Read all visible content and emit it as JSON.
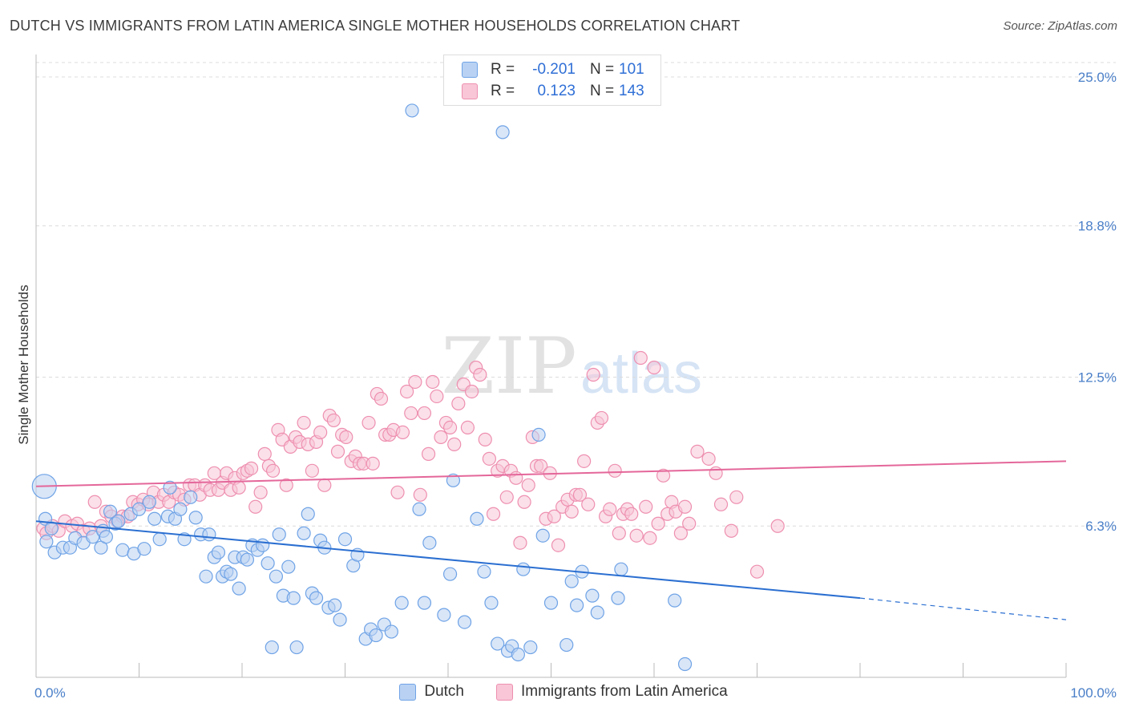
{
  "title": "DUTCH VS IMMIGRANTS FROM LATIN AMERICA SINGLE MOTHER HOUSEHOLDS CORRELATION CHART",
  "source": "Source: ZipAtlas.com",
  "watermark": {
    "zip": "ZIP",
    "atlas": "atlas"
  },
  "colors": {
    "dutch": "#6fa3e6",
    "dutch_fill": "#b9d2f3",
    "latin": "#ee8fb0",
    "latin_fill": "#f8c6d7",
    "dutch_line": "#2b6fd1",
    "latin_line": "#e4679a",
    "tick": "#4a7fc8"
  },
  "legend": {
    "rows": [
      {
        "r_label": "R =",
        "r_value": "-0.201",
        "n_label": "N =",
        "n_value": "101"
      },
      {
        "r_label": "R =",
        "r_value": "0.123",
        "n_label": "N =",
        "n_value": "143"
      }
    ]
  },
  "bottom_legend": [
    "Dutch",
    "Immigrants from Latin America"
  ],
  "chart_data": {
    "type": "scatter",
    "title": "DUTCH VS IMMIGRANTS FROM LATIN AMERICA SINGLE MOTHER HOUSEHOLDS CORRELATION CHART",
    "xlabel": "",
    "ylabel": "Single Mother Households",
    "xlim": [
      0,
      100
    ],
    "ylim": [
      0,
      25.6
    ],
    "x_tick_labels": [
      "0.0%",
      "100.0%"
    ],
    "y_ticks": [
      6.3,
      12.5,
      18.8,
      25.0
    ],
    "y_tick_labels": [
      "6.3%",
      "12.5%",
      "18.8%",
      "25.0%"
    ],
    "grid": "horizontal dashed",
    "series": [
      {
        "name": "Dutch",
        "trend": {
          "x0": 0,
          "y0": 6.5,
          "x1": 80,
          "y1": 3.3,
          "dash_to_x": 100,
          "dash_y": 2.4
        },
        "points": [
          [
            0.8,
            7.95
          ],
          [
            0.9,
            6.6
          ],
          [
            1.0,
            5.65
          ],
          [
            1.5,
            6.2
          ],
          [
            1.8,
            5.2
          ],
          [
            2.6,
            5.4
          ],
          [
            3.3,
            5.4
          ],
          [
            3.8,
            5.8
          ],
          [
            4.6,
            5.6
          ],
          [
            5.5,
            5.85
          ],
          [
            6.3,
            5.4
          ],
          [
            6.5,
            6.1
          ],
          [
            6.8,
            5.85
          ],
          [
            7.2,
            6.9
          ],
          [
            7.7,
            6.4
          ],
          [
            8.0,
            6.5
          ],
          [
            8.4,
            5.3
          ],
          [
            9.2,
            6.8
          ],
          [
            9.5,
            5.15
          ],
          [
            10.0,
            7.0
          ],
          [
            10.5,
            5.35
          ],
          [
            11.0,
            7.3
          ],
          [
            11.5,
            6.6
          ],
          [
            12.0,
            5.75
          ],
          [
            12.8,
            6.7
          ],
          [
            13.0,
            7.9
          ],
          [
            13.5,
            6.6
          ],
          [
            14.0,
            7.0
          ],
          [
            14.4,
            5.75
          ],
          [
            15.0,
            7.5
          ],
          [
            15.5,
            6.65
          ],
          [
            16.0,
            5.95
          ],
          [
            16.5,
            4.2
          ],
          [
            16.8,
            5.95
          ],
          [
            17.3,
            5.0
          ],
          [
            17.7,
            5.2
          ],
          [
            18.1,
            4.2
          ],
          [
            18.5,
            4.4
          ],
          [
            18.9,
            4.3
          ],
          [
            19.3,
            5.0
          ],
          [
            19.7,
            3.7
          ],
          [
            20.1,
            5.0
          ],
          [
            20.5,
            4.9
          ],
          [
            21.0,
            5.5
          ],
          [
            21.5,
            5.3
          ],
          [
            22.0,
            5.5
          ],
          [
            22.5,
            4.75
          ],
          [
            22.9,
            1.25
          ],
          [
            23.3,
            4.2
          ],
          [
            23.6,
            5.95
          ],
          [
            24.0,
            3.4
          ],
          [
            24.5,
            4.6
          ],
          [
            25.0,
            3.3
          ],
          [
            25.3,
            1.25
          ],
          [
            26.0,
            6.0
          ],
          [
            26.4,
            6.8
          ],
          [
            26.8,
            3.5
          ],
          [
            27.2,
            3.3
          ],
          [
            27.6,
            5.7
          ],
          [
            28.0,
            5.4
          ],
          [
            28.4,
            2.9
          ],
          [
            29.0,
            3.0
          ],
          [
            29.5,
            2.4
          ],
          [
            30.0,
            5.75
          ],
          [
            30.8,
            4.65
          ],
          [
            31.2,
            5.1
          ],
          [
            32.0,
            1.6
          ],
          [
            32.5,
            2.0
          ],
          [
            33.0,
            1.75
          ],
          [
            33.8,
            2.2
          ],
          [
            34.5,
            1.9
          ],
          [
            35.5,
            3.1
          ],
          [
            36.5,
            23.6
          ],
          [
            37.2,
            7.0
          ],
          [
            37.7,
            3.1
          ],
          [
            38.2,
            5.6
          ],
          [
            39.6,
            2.6
          ],
          [
            40.2,
            4.3
          ],
          [
            40.5,
            8.2
          ],
          [
            41.6,
            2.3
          ],
          [
            42.8,
            6.6
          ],
          [
            43.5,
            4.4
          ],
          [
            44.2,
            3.1
          ],
          [
            44.8,
            1.4
          ],
          [
            45.3,
            22.7
          ],
          [
            45.8,
            1.1
          ],
          [
            46.2,
            1.3
          ],
          [
            46.8,
            0.95
          ],
          [
            47.3,
            4.5
          ],
          [
            48.0,
            1.25
          ],
          [
            48.8,
            10.1
          ],
          [
            49.2,
            5.9
          ],
          [
            50.0,
            3.1
          ],
          [
            51.5,
            1.35
          ],
          [
            52.0,
            4.0
          ],
          [
            52.5,
            3.0
          ],
          [
            53.0,
            4.4
          ],
          [
            54.0,
            3.4
          ],
          [
            54.5,
            2.7
          ],
          [
            56.5,
            3.3
          ],
          [
            56.8,
            4.5
          ],
          [
            62.0,
            3.2
          ],
          [
            63.0,
            0.55
          ]
        ],
        "large_points": [
          [
            0.8,
            7.95
          ],
          [
            1.0,
            6.6
          ]
        ]
      },
      {
        "name": "Immigrants from Latin America",
        "trend": {
          "x0": 0,
          "y0": 7.95,
          "x1": 100,
          "y1": 9.0
        },
        "points": [
          [
            0.7,
            6.2
          ],
          [
            1.0,
            6.0
          ],
          [
            1.6,
            6.3
          ],
          [
            2.2,
            6.1
          ],
          [
            2.8,
            6.5
          ],
          [
            3.5,
            6.3
          ],
          [
            4.0,
            6.4
          ],
          [
            4.6,
            6.1
          ],
          [
            5.2,
            6.2
          ],
          [
            5.7,
            7.3
          ],
          [
            6.3,
            6.3
          ],
          [
            6.8,
            6.9
          ],
          [
            7.3,
            6.7
          ],
          [
            7.9,
            6.5
          ],
          [
            8.4,
            6.7
          ],
          [
            8.9,
            6.7
          ],
          [
            9.4,
            7.3
          ],
          [
            9.9,
            7.2
          ],
          [
            10.4,
            7.4
          ],
          [
            10.9,
            7.2
          ],
          [
            11.4,
            7.7
          ],
          [
            11.9,
            7.3
          ],
          [
            12.4,
            7.6
          ],
          [
            12.9,
            7.3
          ],
          [
            13.4,
            7.7
          ],
          [
            13.9,
            7.6
          ],
          [
            14.4,
            7.4
          ],
          [
            14.9,
            8.0
          ],
          [
            15.4,
            8.0
          ],
          [
            15.9,
            7.6
          ],
          [
            16.4,
            8.0
          ],
          [
            16.9,
            7.8
          ],
          [
            17.3,
            8.5
          ],
          [
            17.7,
            7.8
          ],
          [
            18.1,
            8.1
          ],
          [
            18.5,
            8.5
          ],
          [
            18.9,
            7.8
          ],
          [
            19.3,
            8.3
          ],
          [
            19.7,
            7.9
          ],
          [
            20.1,
            8.5
          ],
          [
            20.5,
            8.6
          ],
          [
            20.9,
            8.7
          ],
          [
            21.3,
            7.1
          ],
          [
            21.8,
            7.7
          ],
          [
            22.2,
            9.3
          ],
          [
            22.6,
            8.8
          ],
          [
            23.0,
            8.6
          ],
          [
            23.5,
            10.3
          ],
          [
            23.9,
            9.9
          ],
          [
            24.3,
            8.0
          ],
          [
            24.7,
            9.6
          ],
          [
            25.2,
            10.0
          ],
          [
            25.6,
            9.8
          ],
          [
            26.0,
            10.6
          ],
          [
            26.4,
            9.7
          ],
          [
            26.8,
            8.6
          ],
          [
            27.2,
            9.8
          ],
          [
            27.6,
            10.2
          ],
          [
            28.0,
            8.0
          ],
          [
            28.5,
            10.9
          ],
          [
            28.9,
            10.7
          ],
          [
            29.3,
            9.4
          ],
          [
            29.7,
            10.1
          ],
          [
            30.1,
            10.0
          ],
          [
            30.6,
            9.0
          ],
          [
            31.0,
            9.2
          ],
          [
            31.4,
            8.9
          ],
          [
            31.8,
            8.9
          ],
          [
            32.3,
            10.6
          ],
          [
            32.7,
            8.9
          ],
          [
            33.1,
            11.8
          ],
          [
            33.5,
            11.6
          ],
          [
            33.9,
            10.1
          ],
          [
            34.3,
            10.1
          ],
          [
            34.7,
            10.3
          ],
          [
            35.1,
            7.7
          ],
          [
            35.6,
            10.2
          ],
          [
            36.0,
            11.9
          ],
          [
            36.4,
            11.0
          ],
          [
            36.8,
            12.3
          ],
          [
            37.3,
            7.6
          ],
          [
            37.7,
            11.0
          ],
          [
            38.1,
            9.3
          ],
          [
            38.5,
            12.3
          ],
          [
            38.9,
            11.7
          ],
          [
            39.3,
            10.0
          ],
          [
            39.8,
            10.6
          ],
          [
            40.2,
            10.4
          ],
          [
            40.6,
            9.7
          ],
          [
            41.0,
            11.4
          ],
          [
            41.5,
            12.2
          ],
          [
            41.9,
            10.4
          ],
          [
            42.3,
            11.9
          ],
          [
            42.7,
            12.9
          ],
          [
            43.1,
            12.6
          ],
          [
            43.6,
            9.9
          ],
          [
            44.0,
            9.1
          ],
          [
            44.4,
            6.8
          ],
          [
            44.8,
            8.6
          ],
          [
            45.3,
            8.8
          ],
          [
            45.7,
            7.5
          ],
          [
            46.1,
            8.6
          ],
          [
            46.6,
            8.3
          ],
          [
            47.0,
            5.6
          ],
          [
            47.4,
            7.3
          ],
          [
            47.8,
            8.0
          ],
          [
            48.2,
            10.0
          ],
          [
            48.6,
            8.8
          ],
          [
            49.0,
            8.8
          ],
          [
            49.5,
            6.6
          ],
          [
            49.9,
            8.5
          ],
          [
            50.3,
            6.7
          ],
          [
            50.7,
            5.5
          ],
          [
            51.1,
            7.1
          ],
          [
            51.6,
            7.4
          ],
          [
            52.0,
            6.9
          ],
          [
            52.4,
            7.6
          ],
          [
            52.8,
            7.6
          ],
          [
            53.2,
            9.0
          ],
          [
            53.6,
            7.2
          ],
          [
            54.1,
            12.6
          ],
          [
            54.5,
            10.6
          ],
          [
            54.9,
            10.8
          ],
          [
            55.3,
            6.7
          ],
          [
            55.7,
            7.0
          ],
          [
            56.2,
            8.6
          ],
          [
            56.6,
            6.0
          ],
          [
            57.0,
            6.8
          ],
          [
            57.4,
            7.0
          ],
          [
            57.8,
            6.8
          ],
          [
            58.3,
            5.9
          ],
          [
            58.7,
            13.3
          ],
          [
            59.2,
            7.1
          ],
          [
            59.6,
            5.8
          ],
          [
            60.0,
            12.9
          ],
          [
            60.4,
            6.4
          ],
          [
            60.9,
            8.4
          ],
          [
            61.3,
            6.8
          ],
          [
            61.7,
            7.3
          ],
          [
            62.1,
            6.9
          ],
          [
            62.6,
            6.0
          ],
          [
            63.0,
            7.1
          ],
          [
            63.4,
            6.4
          ],
          [
            64.2,
            9.4
          ],
          [
            65.3,
            9.1
          ],
          [
            66.0,
            8.5
          ],
          [
            66.5,
            7.2
          ],
          [
            67.5,
            6.1
          ],
          [
            68.0,
            7.5
          ],
          [
            70.0,
            4.4
          ],
          [
            72.0,
            6.3
          ]
        ]
      }
    ]
  }
}
